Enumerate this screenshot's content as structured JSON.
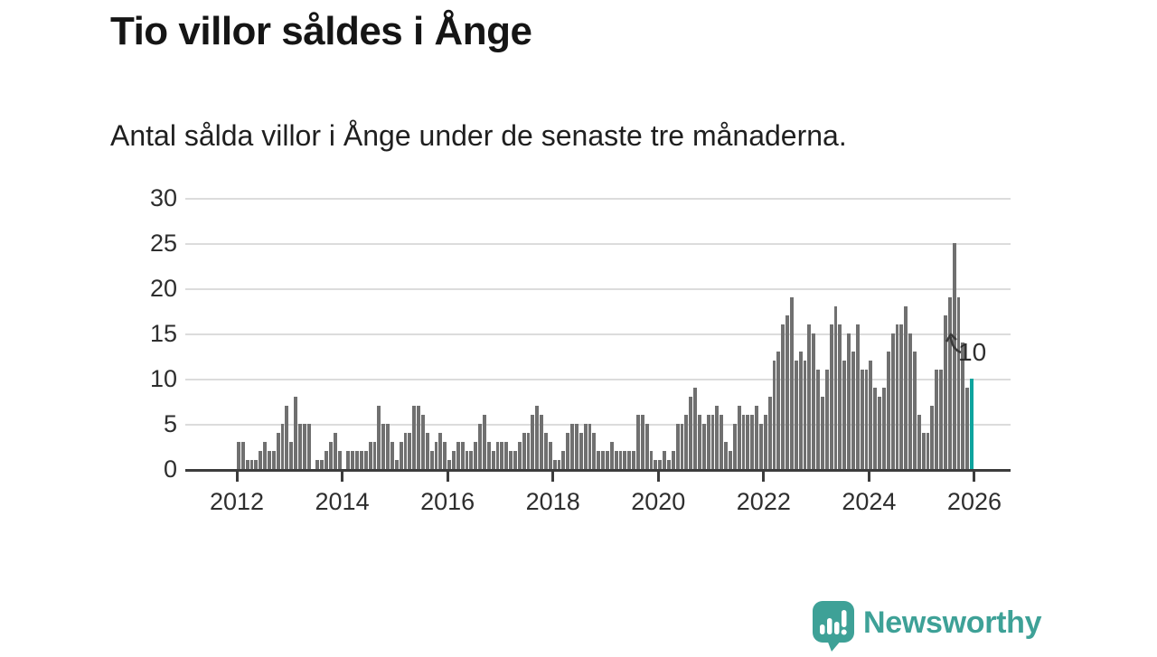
{
  "chart_data": {
    "type": "bar",
    "title": "Tio villor såldes i Ånge",
    "subtitle": "Antal sålda villor i Ånge under de senaste tre månaderna.",
    "x_start": "2012-01",
    "x_interval": "monthly-rolling-3-months",
    "values": [
      3,
      3,
      1,
      1,
      1,
      2,
      3,
      2,
      2,
      4,
      5,
      7,
      3,
      8,
      5,
      5,
      5,
      0,
      1,
      1,
      2,
      3,
      4,
      2,
      0,
      2,
      2,
      2,
      2,
      2,
      3,
      3,
      7,
      5,
      5,
      3,
      1,
      3,
      4,
      4,
      7,
      7,
      6,
      4,
      2,
      3,
      4,
      3,
      1,
      2,
      3,
      3,
      2,
      2,
      3,
      5,
      6,
      3,
      2,
      3,
      3,
      3,
      2,
      2,
      3,
      4,
      4,
      6,
      7,
      6,
      4,
      3,
      1,
      1,
      2,
      4,
      5,
      5,
      4,
      5,
      5,
      4,
      2,
      2,
      2,
      3,
      2,
      2,
      2,
      2,
      2,
      6,
      6,
      5,
      2,
      1,
      1,
      2,
      1,
      2,
      5,
      5,
      6,
      8,
      9,
      6,
      5,
      6,
      6,
      7,
      6,
      3,
      2,
      5,
      7,
      6,
      6,
      6,
      7,
      5,
      6,
      8,
      12,
      13,
      16,
      17,
      19,
      12,
      13,
      12,
      16,
      15,
      11,
      8,
      11,
      16,
      18,
      16,
      12,
      15,
      13,
      16,
      11,
      11,
      12,
      9,
      8,
      9,
      13,
      15,
      16,
      16,
      18,
      15,
      13,
      6,
      4,
      4,
      7,
      11,
      11,
      17,
      19,
      25,
      19,
      14,
      9
    ],
    "highlight_last": {
      "value": 10,
      "label": "10"
    },
    "ylim": [
      0,
      30
    ],
    "yticks": [
      0,
      5,
      10,
      15,
      20,
      25,
      30
    ],
    "xticks": [
      "2012",
      "2014",
      "2016",
      "2018",
      "2020",
      "2022",
      "2024",
      "2026"
    ],
    "grid": true,
    "legend": "none",
    "colors": {
      "bar": "#707070",
      "highlight": "#0ea49e",
      "axis": "#3c3c3c",
      "grid": "#dcdcdc",
      "text": "#2e2e2e"
    }
  },
  "branding": {
    "name": "Newsworthy",
    "color": "#3ea197",
    "logo_icon": "speech-bubble-bar-chart"
  }
}
